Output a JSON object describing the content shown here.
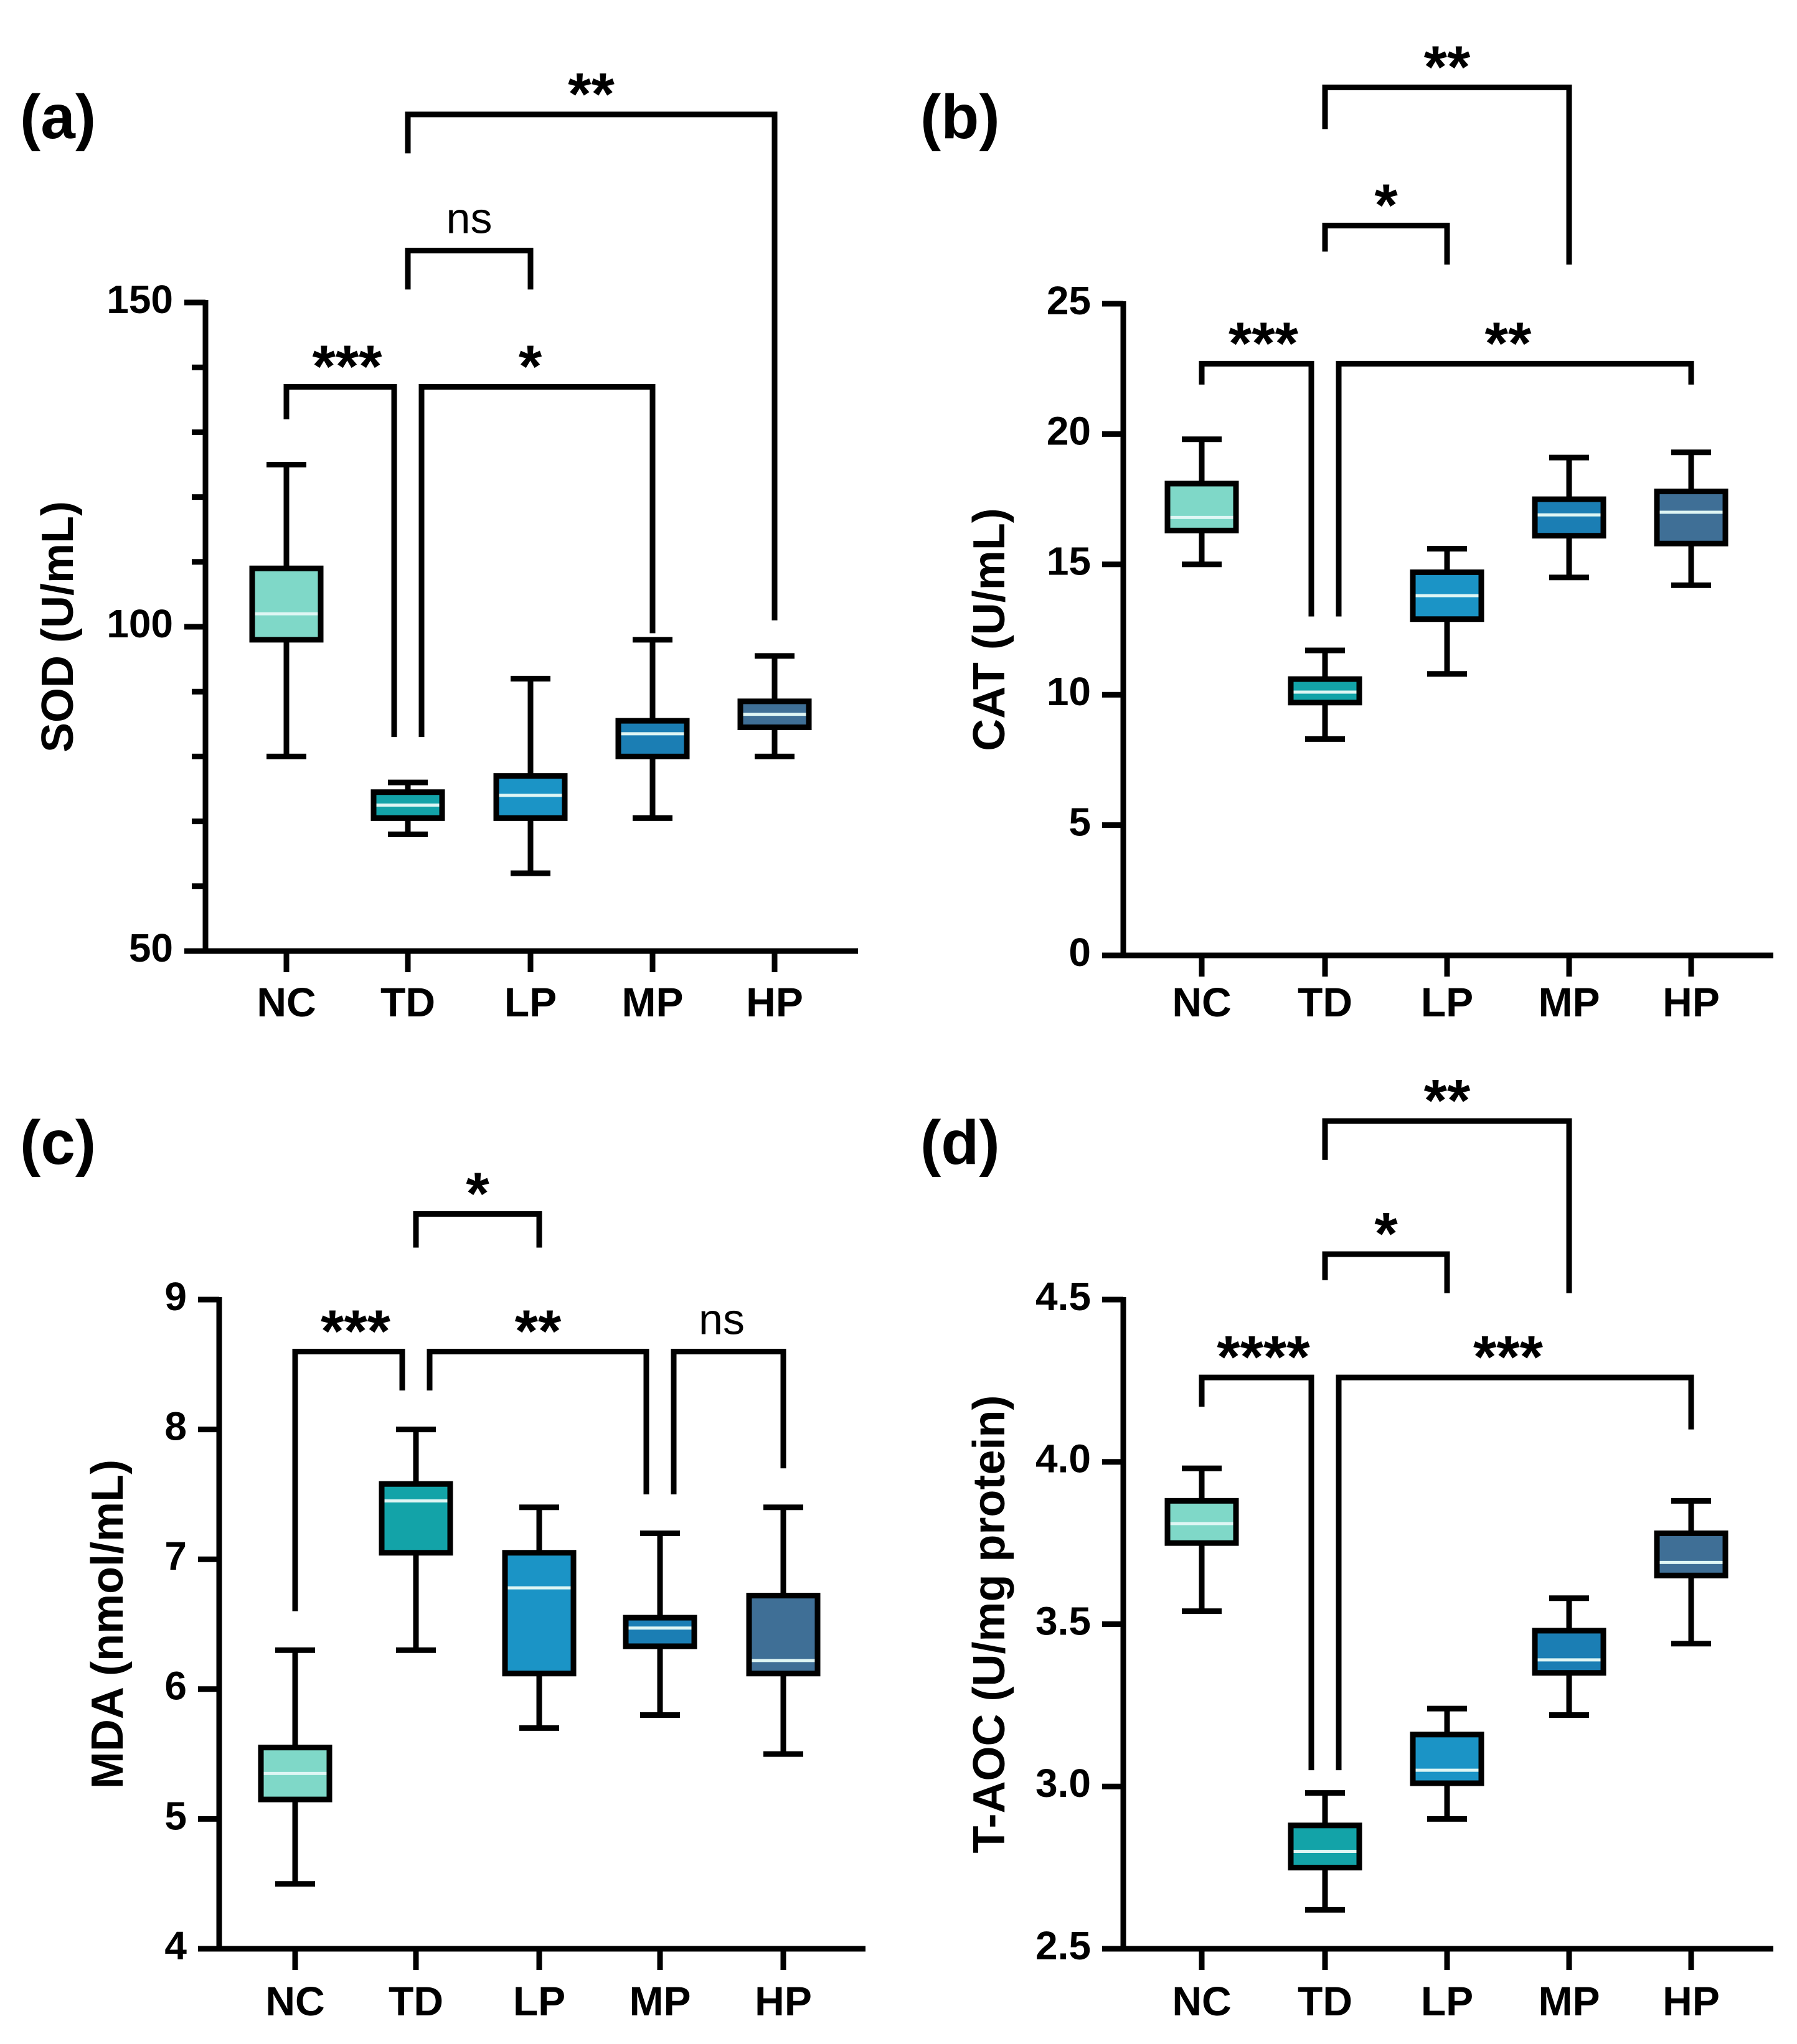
{
  "figure": {
    "categories": [
      "NC",
      "TD",
      "LP",
      "MP",
      "HP"
    ],
    "colors": [
      "#7fd8c8",
      "#13a3a8",
      "#1b94c6",
      "#1b7eb4",
      "#3f6f96"
    ],
    "median_color": "#dff6f4"
  },
  "chart_data": [
    {
      "type": "box",
      "panel_label": "(a)",
      "ylabel": "SOD (U/mL)",
      "categories": [
        "NC",
        "TD",
        "LP",
        "MP",
        "HP"
      ],
      "ylim": [
        50,
        150
      ],
      "yticks": [
        50,
        100,
        150
      ],
      "ytick_labels": [
        "50",
        "100",
        "150"
      ],
      "minor_step": 10,
      "boxes": [
        {
          "min": 80,
          "q1": 98,
          "median": 102,
          "q3": 109,
          "max": 125
        },
        {
          "min": 68,
          "q1": 70.5,
          "median": 72.5,
          "q3": 74.5,
          "max": 76
        },
        {
          "min": 62,
          "q1": 70.5,
          "median": 74,
          "q3": 77,
          "max": 92
        },
        {
          "min": 70.5,
          "q1": 80,
          "median": 83.5,
          "q3": 85.5,
          "max": 98
        },
        {
          "min": 80,
          "q1": 84.5,
          "median": 86.5,
          "q3": 88.5,
          "max": 95.5
        }
      ],
      "brackets": [
        {
          "from": 0,
          "to": 1,
          "y": 137,
          "drop_from": 132,
          "drop_to": 83,
          "label": "***"
        },
        {
          "from": 1,
          "to": 3,
          "y": 137,
          "drop_from": 83,
          "drop_to": 99,
          "label": "*"
        },
        {
          "from": 1,
          "to": 2,
          "y": 158,
          "drop_from": 152,
          "drop_to": 152,
          "label": "ns"
        },
        {
          "from": 1,
          "to": 4,
          "y": 179,
          "drop_from": 173,
          "drop_to": 101,
          "label": "**"
        }
      ]
    },
    {
      "type": "box",
      "panel_label": "(b)",
      "ylabel": "CAT (U/mL)",
      "categories": [
        "NC",
        "TD",
        "LP",
        "MP",
        "HP"
      ],
      "ylim": [
        0,
        25
      ],
      "yticks": [
        0,
        5,
        10,
        15,
        20,
        25
      ],
      "ytick_labels": [
        "0",
        "5",
        "10",
        "15",
        "20",
        "25"
      ],
      "minor_step": null,
      "boxes": [
        {
          "min": 15,
          "q1": 16.3,
          "median": 16.8,
          "q3": 18.1,
          "max": 19.8
        },
        {
          "min": 8.3,
          "q1": 9.7,
          "median": 10.1,
          "q3": 10.6,
          "max": 11.7
        },
        {
          "min": 10.8,
          "q1": 12.9,
          "median": 13.8,
          "q3": 14.7,
          "max": 15.6
        },
        {
          "min": 14.5,
          "q1": 16.1,
          "median": 16.9,
          "q3": 17.5,
          "max": 19.1
        },
        {
          "min": 14.2,
          "q1": 15.8,
          "median": 17.0,
          "q3": 17.8,
          "max": 19.3
        }
      ],
      "brackets": [
        {
          "from": 0,
          "to": 1,
          "y": 22.7,
          "drop_from": 21.9,
          "drop_to": 13.0,
          "label": "***"
        },
        {
          "from": 1,
          "to": 4,
          "y": 22.7,
          "drop_from": 13.0,
          "drop_to": 21.9,
          "label": "**"
        },
        {
          "from": 1,
          "to": 2,
          "y": 28.0,
          "drop_from": 27.0,
          "drop_to": 26.5,
          "label": "*"
        },
        {
          "from": 1,
          "to": 3,
          "y": 33.3,
          "drop_from": 31.7,
          "drop_to": 26.5,
          "label": "**"
        }
      ]
    },
    {
      "type": "box",
      "panel_label": "(c)",
      "ylabel": "MDA (nmol/mL)",
      "categories": [
        "NC",
        "TD",
        "LP",
        "MP",
        "HP"
      ],
      "ylim": [
        4,
        9
      ],
      "yticks": [
        4,
        5,
        6,
        7,
        8,
        9
      ],
      "ytick_labels": [
        "4",
        "5",
        "6",
        "7",
        "8",
        "9"
      ],
      "minor_step": null,
      "boxes": [
        {
          "min": 4.5,
          "q1": 5.15,
          "median": 5.35,
          "q3": 5.55,
          "max": 6.3
        },
        {
          "min": 6.3,
          "q1": 7.05,
          "median": 7.45,
          "q3": 7.58,
          "max": 8.0
        },
        {
          "min": 5.7,
          "q1": 6.12,
          "median": 6.78,
          "q3": 7.05,
          "max": 7.4
        },
        {
          "min": 5.8,
          "q1": 6.33,
          "median": 6.47,
          "q3": 6.55,
          "max": 7.2
        },
        {
          "min": 5.5,
          "q1": 6.12,
          "median": 6.22,
          "q3": 6.72,
          "max": 7.4
        }
      ],
      "brackets": [
        {
          "from": 0,
          "to": 1,
          "y": 8.6,
          "drop_from": 6.6,
          "drop_to": 8.3,
          "label": "***"
        },
        {
          "from": 1,
          "to": 3,
          "y": 8.6,
          "drop_from": 8.3,
          "drop_to": 7.5,
          "label": "**"
        },
        {
          "from": 3,
          "to": 4,
          "y": 8.6,
          "drop_from": 7.5,
          "drop_to": 7.7,
          "label": "ns"
        },
        {
          "from": 1,
          "to": 2,
          "y": 9.66,
          "drop_from": 9.4,
          "drop_to": 9.4,
          "label": "*"
        }
      ]
    },
    {
      "type": "box",
      "panel_label": "(d)",
      "ylabel": "T-AOC (U/mg protein)",
      "categories": [
        "NC",
        "TD",
        "LP",
        "MP",
        "HP"
      ],
      "ylim": [
        2.5,
        4.5
      ],
      "yticks": [
        2.5,
        3.0,
        3.5,
        4.0,
        4.5
      ],
      "ytick_labels": [
        "2.5",
        "3.0",
        "3.5",
        "4.0",
        "4.5"
      ],
      "minor_step": null,
      "boxes": [
        {
          "min": 3.54,
          "q1": 3.75,
          "median": 3.81,
          "q3": 3.88,
          "max": 3.98
        },
        {
          "min": 2.62,
          "q1": 2.75,
          "median": 2.8,
          "q3": 2.88,
          "max": 2.98
        },
        {
          "min": 2.9,
          "q1": 3.01,
          "median": 3.05,
          "q3": 3.16,
          "max": 3.24
        },
        {
          "min": 3.22,
          "q1": 3.35,
          "median": 3.39,
          "q3": 3.48,
          "max": 3.58
        },
        {
          "min": 3.44,
          "q1": 3.65,
          "median": 3.69,
          "q3": 3.78,
          "max": 3.88
        }
      ],
      "brackets": [
        {
          "from": 0,
          "to": 1,
          "y": 4.26,
          "drop_from": 4.17,
          "drop_to": 3.05,
          "label": "****"
        },
        {
          "from": 1,
          "to": 4,
          "y": 4.26,
          "drop_from": 3.05,
          "drop_to": 4.1,
          "label": "***"
        },
        {
          "from": 1,
          "to": 2,
          "y": 4.64,
          "drop_from": 4.56,
          "drop_to": 4.52,
          "label": "*"
        },
        {
          "from": 1,
          "to": 3,
          "y": 5.05,
          "drop_from": 4.93,
          "drop_to": 4.52,
          "label": "**"
        }
      ]
    }
  ]
}
